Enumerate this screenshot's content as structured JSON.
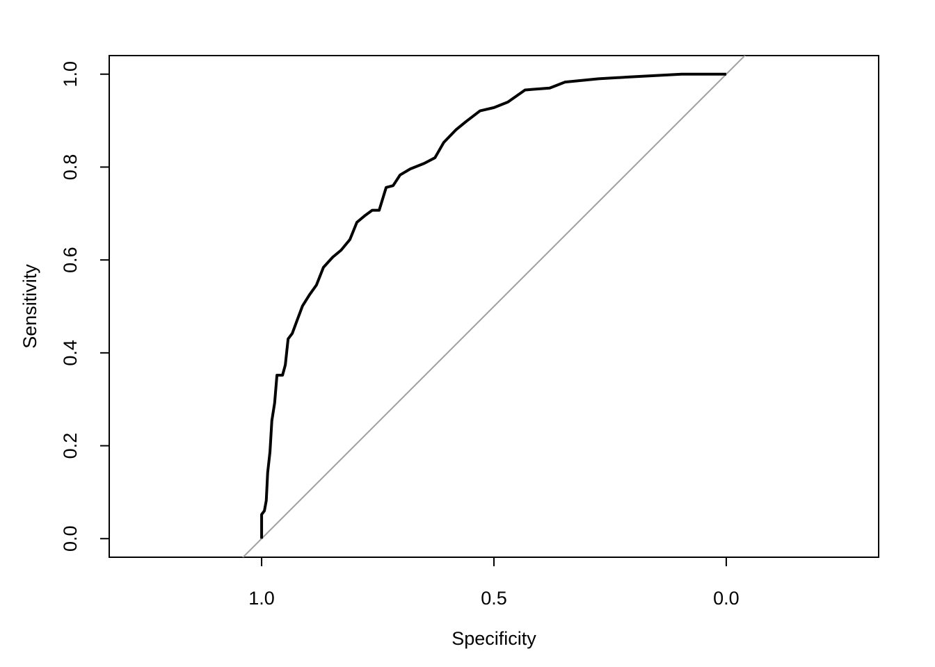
{
  "chart_data": {
    "type": "line",
    "xlabel": "Specificity",
    "ylabel": "Sensitivity",
    "xlim": [
      1.328,
      -0.328
    ],
    "ylim": [
      -0.04,
      1.04
    ],
    "xticks": [
      {
        "value": 1,
        "label": "1.0"
      },
      {
        "value": 0.5,
        "label": "0.5"
      },
      {
        "value": 0,
        "label": "0.0"
      }
    ],
    "yticks": [
      {
        "value": 0,
        "label": "0.0"
      },
      {
        "value": 0.2,
        "label": "0.2"
      },
      {
        "value": 0.4,
        "label": "0.4"
      },
      {
        "value": 0.6,
        "label": "0.6"
      },
      {
        "value": 0.8,
        "label": "0.8"
      },
      {
        "value": 1,
        "label": "1.0"
      }
    ],
    "series": [
      {
        "color": "#000000",
        "x": [
          1.0,
          1.0,
          0.994,
          0.99,
          0.987,
          0.982,
          0.978,
          0.972,
          0.967,
          0.955,
          0.949,
          0.943,
          0.934,
          0.924,
          0.912,
          0.897,
          0.882,
          0.867,
          0.847,
          0.829,
          0.81,
          0.795,
          0.777,
          0.762,
          0.747,
          0.732,
          0.717,
          0.702,
          0.68,
          0.65,
          0.627,
          0.608,
          0.582,
          0.56,
          0.53,
          0.5,
          0.47,
          0.433,
          0.38,
          0.347,
          0.275,
          0.208,
          0.096,
          0.0
        ],
        "values": [
          0.0,
          0.052,
          0.06,
          0.082,
          0.142,
          0.187,
          0.254,
          0.292,
          0.352,
          0.352,
          0.374,
          0.43,
          0.442,
          0.469,
          0.501,
          0.525,
          0.546,
          0.584,
          0.606,
          0.621,
          0.644,
          0.681,
          0.696,
          0.707,
          0.707,
          0.756,
          0.76,
          0.783,
          0.796,
          0.808,
          0.82,
          0.853,
          0.88,
          0.898,
          0.921,
          0.928,
          0.94,
          0.966,
          0.97,
          0.983,
          0.99,
          0.994,
          1.0,
          1.0
        ]
      }
    ],
    "reference_line": {
      "x": [
        1,
        0
      ],
      "y": [
        0,
        1
      ],
      "color": "#a0a0a0"
    }
  }
}
